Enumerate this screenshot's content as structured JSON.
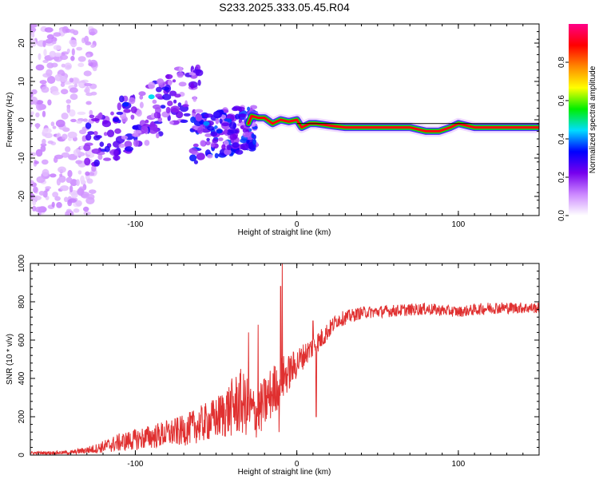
{
  "title": "S233.2025.333.05.45.R04",
  "chart_data": [
    {
      "type": "heatmap",
      "xlabel": "Height of straight line (km)",
      "ylabel": "Frequency (Hz)",
      "xlim": [
        -165,
        150
      ],
      "ylim": [
        -25,
        25
      ],
      "x_ticks": [
        -100,
        0,
        100
      ],
      "x_tick_labels": [
        "-100",
        "0",
        "100"
      ],
      "y_ticks": [
        -20,
        -10,
        0,
        10,
        20
      ],
      "y_tick_labels": [
        "-20",
        "-10",
        "0",
        "10",
        "20"
      ],
      "colorbar": {
        "label": "Normalized spectral amplitude",
        "range": [
          0,
          1
        ],
        "ticks": [
          0.0,
          0.2,
          0.4,
          0.6,
          0.8
        ],
        "tick_labels": [
          "0.0",
          "0.2",
          "0.4",
          "0.6",
          "0.8"
        ],
        "colormap": [
          "#ffffff",
          "#cc88ff",
          "#7700ee",
          "#0000ff",
          "#00ddff",
          "#00ee00",
          "#ffff00",
          "#ff8800",
          "#ff0000",
          "#ff0088"
        ]
      },
      "ridge": {
        "description": "main frequency trace",
        "points": [
          [
            -30,
            -1
          ],
          [
            -28,
            1
          ],
          [
            -24,
            0.5
          ],
          [
            -20,
            0.5
          ],
          [
            -15,
            -1
          ],
          [
            -10,
            0
          ],
          [
            -5,
            -0.5
          ],
          [
            0,
            0
          ],
          [
            3,
            -2
          ],
          [
            8,
            -1
          ],
          [
            12,
            -1
          ],
          [
            20,
            -1.5
          ],
          [
            30,
            -2
          ],
          [
            60,
            -2
          ],
          [
            70,
            -2
          ],
          [
            80,
            -3
          ],
          [
            88,
            -3
          ],
          [
            95,
            -2
          ],
          [
            100,
            -1
          ],
          [
            110,
            -2
          ],
          [
            130,
            -2
          ],
          [
            150,
            -2
          ]
        ]
      },
      "clusters": [
        {
          "x": [
            -165,
            -125
          ],
          "y": [
            -25,
            25
          ],
          "amp": 0.1
        },
        {
          "x": [
            -130,
            -60
          ],
          "y": [
            -10,
            12
          ],
          "amp": 0.25
        },
        {
          "x": [
            -65,
            -25
          ],
          "y": [
            -12,
            5
          ],
          "amp": 0.3
        }
      ]
    },
    {
      "type": "line",
      "xlabel": "Height of straight line (km)",
      "ylabel": "SNR (10 * v/v)",
      "xlim": [
        -165,
        150
      ],
      "ylim": [
        0,
        1000
      ],
      "x_ticks": [
        -100,
        0,
        100
      ],
      "x_tick_labels": [
        "-100",
        "0",
        "100"
      ],
      "y_ticks": [
        0,
        200,
        400,
        600,
        800,
        1000
      ],
      "y_tick_labels": [
        "0",
        "200",
        "400",
        "600",
        "800",
        "1000"
      ],
      "color": "#e03030",
      "envelope": [
        {
          "x": -165,
          "base": 10,
          "noise": 10
        },
        {
          "x": -140,
          "base": 12,
          "noise": 12
        },
        {
          "x": -125,
          "base": 30,
          "noise": 30
        },
        {
          "x": -110,
          "base": 60,
          "noise": 60
        },
        {
          "x": -90,
          "base": 90,
          "noise": 80
        },
        {
          "x": -70,
          "base": 120,
          "noise": 100
        },
        {
          "x": -50,
          "base": 180,
          "noise": 140
        },
        {
          "x": -35,
          "base": 260,
          "noise": 220
        },
        {
          "x": -25,
          "base": 200,
          "noise": 160
        },
        {
          "x": -18,
          "base": 280,
          "noise": 180
        },
        {
          "x": -10,
          "base": 380,
          "noise": 160
        },
        {
          "x": -5,
          "base": 420,
          "noise": 120
        },
        {
          "x": 5,
          "base": 520,
          "noise": 80
        },
        {
          "x": 15,
          "base": 600,
          "noise": 70
        },
        {
          "x": 25,
          "base": 700,
          "noise": 50
        },
        {
          "x": 40,
          "base": 740,
          "noise": 40
        },
        {
          "x": 60,
          "base": 750,
          "noise": 40
        },
        {
          "x": 80,
          "base": 760,
          "noise": 40
        },
        {
          "x": 100,
          "base": 745,
          "noise": 35
        },
        {
          "x": 120,
          "base": 765,
          "noise": 40
        },
        {
          "x": 150,
          "base": 765,
          "noise": 35
        }
      ],
      "spikes": [
        {
          "x": -9,
          "y": 1000
        },
        {
          "x": -10,
          "y": 880
        },
        {
          "x": -24,
          "y": 680
        },
        {
          "x": -30,
          "y": 640
        },
        {
          "x": 10,
          "y": 700
        },
        {
          "x": 12,
          "y": 200
        },
        {
          "x": -11,
          "y": 120
        }
      ]
    }
  ]
}
